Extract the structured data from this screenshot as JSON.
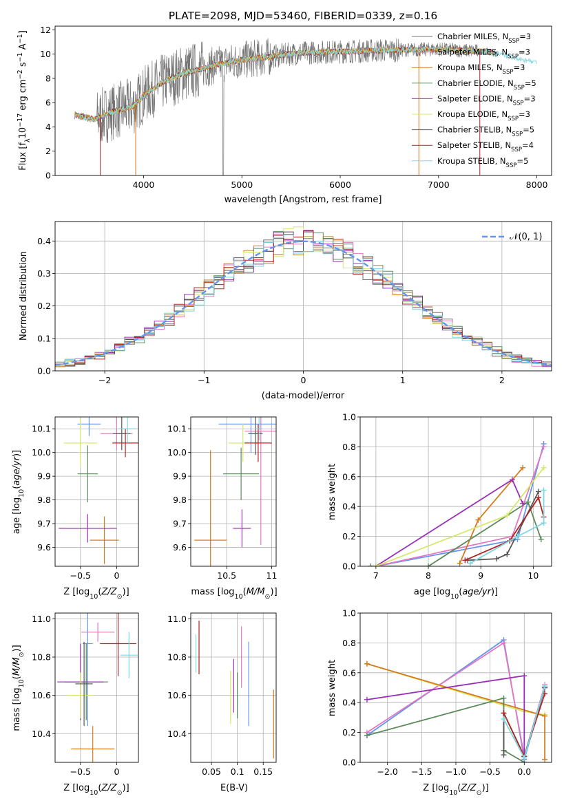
{
  "title": "PLATE=2098, MJD=53460, FIBERID=0339, z=0.16",
  "colors": {
    "c_miles": "#737373",
    "s_miles": "#e377c2",
    "k_miles": "#d47a1c",
    "c_elodie": "#5b8a5b",
    "s_elodie": "#9b30b8",
    "k_elodie": "#d6e86a",
    "c_stelib": "#555555",
    "s_stelib": "#b22222",
    "k_stelib": "#7fd7e0",
    "normal": "#6495ed"
  },
  "legend": [
    {
      "label": "Chabrier MILES, N",
      "sub": "SSP",
      "tail": "=3",
      "color": "#737373"
    },
    {
      "label": "Salpeter MILES, N",
      "sub": "SSP",
      "tail": "=3",
      "color": "#e377c2"
    },
    {
      "label": "Kroupa MILES, N",
      "sub": "SSP",
      "tail": "=3",
      "color": "#d47a1c"
    },
    {
      "label": "Chabrier ELODIE, N",
      "sub": "SSP",
      "tail": "=5",
      "color": "#5b8a5b"
    },
    {
      "label": "Salpeter ELODIE, N",
      "sub": "SSP",
      "tail": "=3",
      "color": "#9b30b8"
    },
    {
      "label": "Kroupa ELODIE, N",
      "sub": "SSP",
      "tail": "=3",
      "color": "#d6e86a"
    },
    {
      "label": "Chabrier STELIB, N",
      "sub": "SSP",
      "tail": "=5",
      "color": "#555555"
    },
    {
      "label": "Salpeter STELIB, N",
      "sub": "SSP",
      "tail": "=4",
      "color": "#b22222"
    },
    {
      "label": "Kroupa STELIB, N",
      "sub": "SSP",
      "tail": "=5",
      "color": "#7fd7e0"
    }
  ],
  "normal_label": "𝒩(0, 1)",
  "chart_data": [
    {
      "id": "spectrum",
      "type": "line",
      "xlabel": "wavelength [Angstrom, rest frame]",
      "ylabel": "Flux [f_λ 10^-17 erg cm^-2 s^-1 A^-1]",
      "xlim": [
        3100,
        8150
      ],
      "ylim": [
        0,
        12.3
      ],
      "xticks": [
        4000,
        5000,
        6000,
        7000,
        8000
      ],
      "yticks": [
        0,
        2,
        4,
        6,
        8,
        10,
        12
      ],
      "continuum": {
        "x": [
          3300,
          3500,
          3700,
          3900,
          4000,
          4200,
          4400,
          4600,
          4800,
          5000,
          5300,
          5600,
          6000,
          6400,
          7000,
          7500,
          8000
        ],
        "y": [
          5.0,
          4.6,
          5.3,
          5.7,
          6.6,
          7.7,
          8.4,
          8.8,
          9.2,
          9.5,
          9.8,
          10.1,
          10.2,
          10.3,
          10.4,
          10.2,
          9.3
        ]
      },
      "grid": false
    },
    {
      "id": "residuals",
      "type": "histogram",
      "xlabel": "(data-model)/error",
      "ylabel": "Normed distribution",
      "xlim": [
        -2.5,
        2.5
      ],
      "ylim": [
        0,
        0.46
      ],
      "xticks": [
        -2,
        -1,
        0,
        1,
        2
      ],
      "yticks": [
        0.0,
        0.1,
        0.2,
        0.3,
        0.4
      ],
      "grid": true,
      "legend_position": "top-right"
    },
    {
      "id": "age_vs_Z",
      "type": "errorbar",
      "xlabel": "Z [log10(Z/Z⊙)]",
      "ylabel": "age  [log10(age/yr)]",
      "xlim": [
        -0.85,
        0.3
      ],
      "ylim": [
        9.52,
        10.15
      ],
      "xticks": [
        -0.5,
        0.0
      ],
      "yticks": [
        9.6,
        9.7,
        9.8,
        9.9,
        10.0,
        10.1
      ],
      "points": [
        {
          "x": 0.0,
          "y": 10.08,
          "xerr": 0.22,
          "yerr": 0.07,
          "color": "#e377c2"
        },
        {
          "x": -0.38,
          "y": 10.12,
          "xerr": 0.16,
          "yerr": 0.05,
          "color": "#6495ed"
        },
        {
          "x": -0.17,
          "y": 9.63,
          "xerr": 0.2,
          "yerr": 0.1,
          "color": "#d47a1c"
        },
        {
          "x": -0.4,
          "y": 9.91,
          "xerr": 0.14,
          "yerr": 0.12,
          "color": "#5b8a5b"
        },
        {
          "x": -0.4,
          "y": 9.68,
          "xerr": 0.4,
          "yerr": 0.06,
          "color": "#9b30b8"
        },
        {
          "x": -0.5,
          "y": 10.04,
          "xerr": 0.23,
          "yerr": 0.1,
          "color": "#d6e86a"
        },
        {
          "x": 0.07,
          "y": 10.08,
          "xerr": 0.12,
          "yerr": 0.07,
          "color": "#555555"
        },
        {
          "x": 0.12,
          "y": 10.04,
          "xerr": 0.18,
          "yerr": 0.06,
          "color": "#b22222"
        },
        {
          "x": 0.15,
          "y": 10.1,
          "xerr": 0.12,
          "yerr": 0.06,
          "color": "#7fd7e0"
        }
      ]
    },
    {
      "id": "age_vs_mass",
      "type": "errorbar",
      "xlabel": "mass [log10(M/M⊙)]",
      "ylabel": "",
      "xlim": [
        10.1,
        11.05
      ],
      "ylim": [
        9.52,
        10.15
      ],
      "xticks": [
        10.5,
        11.0
      ],
      "yticks": [
        9.6,
        9.7,
        9.8,
        9.9,
        10.0,
        10.1
      ],
      "points": [
        {
          "x": 10.88,
          "y": 10.09,
          "xerr": 0.18,
          "yerr": 0.48,
          "color": "#e377c2"
        },
        {
          "x": 10.77,
          "y": 10.12,
          "xerr": 0.36,
          "yerr": 0.12,
          "color": "#6495ed"
        },
        {
          "x": 10.32,
          "y": 9.63,
          "xerr": 0.18,
          "yerr": 0.38,
          "color": "#d47a1c"
        },
        {
          "x": 10.66,
          "y": 9.91,
          "xerr": 0.2,
          "yerr": 0.11,
          "color": "#5b8a5b"
        },
        {
          "x": 10.67,
          "y": 9.68,
          "xerr": 0.1,
          "yerr": 0.08,
          "color": "#9b30b8"
        },
        {
          "x": 10.68,
          "y": 10.04,
          "xerr": 0.16,
          "yerr": 0.08,
          "color": "#d6e86a"
        },
        {
          "x": 10.82,
          "y": 10.08,
          "xerr": 0.08,
          "yerr": 0.09,
          "color": "#555555"
        },
        {
          "x": 10.85,
          "y": 10.04,
          "xerr": 0.15,
          "yerr": 0.08,
          "color": "#b22222"
        },
        {
          "x": 10.86,
          "y": 10.1,
          "xerr": 0.04,
          "yerr": 0.05,
          "color": "#7fd7e0"
        }
      ]
    },
    {
      "id": "weight_vs_age",
      "type": "line",
      "xlabel": "age  [log10(age/yr)]",
      "ylabel": "mass weight",
      "xlim": [
        6.7,
        10.35
      ],
      "ylim": [
        0,
        1.0
      ],
      "xticks": [
        7,
        8,
        9,
        10
      ],
      "yticks": [
        0.0,
        0.2,
        0.4,
        0.6,
        0.8,
        1.0
      ],
      "grid": true,
      "series": [
        {
          "color": "#6495ed",
          "x": [
            7.0,
            9.7,
            10.2
          ],
          "y": [
            0.0,
            0.18,
            0.82
          ]
        },
        {
          "color": "#e377c2",
          "x": [
            7.0,
            9.6,
            10.2
          ],
          "y": [
            0.0,
            0.2,
            0.8
          ]
        },
        {
          "color": "#d47a1c",
          "x": [
            8.6,
            8.95,
            9.8
          ],
          "y": [
            0.02,
            0.31,
            0.66
          ]
        },
        {
          "color": "#5b8a5b",
          "x": [
            6.9,
            8.0,
            9.9,
            10.15
          ],
          "y": [
            0.0,
            0.0,
            0.43,
            0.18
          ]
        },
        {
          "color": "#9b30b8",
          "x": [
            7.0,
            9.6,
            9.8
          ],
          "y": [
            0.0,
            0.58,
            0.42
          ]
        },
        {
          "color": "#d6e86a",
          "x": [
            7.0,
            9.5,
            10.2
          ],
          "y": [
            0.0,
            0.34,
            0.66
          ]
        },
        {
          "color": "#555555",
          "x": [
            8.75,
            9.3,
            9.5,
            10.1
          ],
          "y": [
            0.04,
            0.05,
            0.08,
            0.5
          ]
        },
        {
          "color": "#b22222",
          "x": [
            8.7,
            9.55,
            10.1,
            10.2
          ],
          "y": [
            0.04,
            0.17,
            0.46,
            0.33
          ]
        },
        {
          "color": "#7fd7e0",
          "x": [
            8.8,
            9.7,
            10.2,
            10.2
          ],
          "y": [
            0.02,
            0.2,
            0.29,
            0.51
          ]
        }
      ]
    },
    {
      "id": "mass_vs_Z",
      "type": "errorbar",
      "xlabel": "Z [log10(Z/Z⊙)]",
      "ylabel": "mass [log10(M/M⊙)]",
      "xlim": [
        -0.85,
        0.3
      ],
      "ylim": [
        10.25,
        11.03
      ],
      "xticks": [
        -0.5,
        0.0
      ],
      "yticks": [
        10.4,
        10.6,
        10.8,
        11.0
      ],
      "points": [
        {
          "x": -0.26,
          "y": 10.93,
          "xerr": 0.23,
          "yerr": 0.05,
          "color": "#e377c2"
        },
        {
          "x": -0.4,
          "y": 10.87,
          "xerr": 0.07,
          "yerr": 0.43,
          "color": "#6495ed"
        },
        {
          "x": -0.33,
          "y": 10.32,
          "xerr": 0.3,
          "yerr": 0.12,
          "color": "#d47a1c"
        },
        {
          "x": -0.42,
          "y": 10.67,
          "xerr": 0.3,
          "yerr": 0.2,
          "color": "#5b8a5b"
        },
        {
          "x": -0.5,
          "y": 10.67,
          "xerr": 0.32,
          "yerr": 0.2,
          "color": "#9b30b8"
        },
        {
          "x": -0.5,
          "y": 10.6,
          "xerr": 0.17,
          "yerr": 0.12,
          "color": "#d6e86a"
        },
        {
          "x": -0.45,
          "y": 10.66,
          "xerr": 0.12,
          "yerr": 0.22,
          "color": "#555555"
        },
        {
          "x": 0.02,
          "y": 10.87,
          "xerr": 0.25,
          "yerr": 0.17,
          "color": "#b22222"
        },
        {
          "x": 0.17,
          "y": 10.81,
          "xerr": 0.12,
          "yerr": 0.12,
          "color": "#7fd7e0"
        }
      ]
    },
    {
      "id": "mass_vs_ebv",
      "type": "errorbar",
      "xlabel": "E(B-V)",
      "ylabel": "",
      "xlim": [
        0.01,
        0.175
      ],
      "ylim": [
        10.25,
        11.03
      ],
      "xticks": [
        0.05,
        0.1,
        0.15
      ],
      "yticks": [
        10.4,
        10.6,
        10.8,
        11.0
      ],
      "points": [
        {
          "x": 0.02,
          "y": 10.82,
          "yerr": 0.1,
          "color": "#7fd7e0"
        },
        {
          "x": 0.026,
          "y": 10.85,
          "yerr": 0.14,
          "color": "#b22222"
        },
        {
          "x": 0.087,
          "y": 10.59,
          "yerr": 0.14,
          "color": "#d6e86a"
        },
        {
          "x": 0.093,
          "y": 10.65,
          "yerr": 0.14,
          "color": "#9b30b8"
        },
        {
          "x": 0.1,
          "y": 10.6,
          "yerr": 0.12,
          "color": "#5b8a5b"
        },
        {
          "x": 0.108,
          "y": 10.8,
          "yerr": 0.16,
          "color": "#e377c2"
        },
        {
          "x": 0.122,
          "y": 10.66,
          "yerr": 0.22,
          "color": "#6495ed"
        },
        {
          "x": 0.17,
          "y": 10.45,
          "yerr": 0.18,
          "color": "#d47a1c"
        }
      ]
    },
    {
      "id": "weight_vs_Z",
      "type": "line",
      "xlabel": "Z [log10(Z/Z⊙)]",
      "ylabel": "mass weight",
      "xlim": [
        -2.4,
        0.4
      ],
      "ylim": [
        0,
        1.0
      ],
      "xticks": [
        -2.0,
        -1.5,
        -1.0,
        -0.5,
        0.0
      ],
      "yticks": [
        0.0,
        0.2,
        0.4,
        0.6,
        0.8,
        1.0
      ],
      "grid": true,
      "series": [
        {
          "color": "#6495ed",
          "x": [
            -2.3,
            -0.3,
            0.0,
            0.3
          ],
          "y": [
            0.18,
            0.82,
            0.02,
            0.5
          ]
        },
        {
          "color": "#e377c2",
          "x": [
            -2.3,
            -0.3,
            0.0,
            0.3
          ],
          "y": [
            0.2,
            0.8,
            0.04,
            0.52
          ]
        },
        {
          "color": "#d6e86a",
          "x": [
            -2.3,
            0.0,
            0.3
          ],
          "y": [
            0.66,
            0.34,
            0.32
          ]
        },
        {
          "color": "#d47a1c",
          "x": [
            -2.3,
            0.3,
            0.3
          ],
          "y": [
            0.66,
            0.31,
            0.02
          ]
        },
        {
          "color": "#9b30b8",
          "x": [
            -2.3,
            0.0,
            0.0
          ],
          "y": [
            0.42,
            0.58,
            0.0
          ]
        },
        {
          "color": "#5b8a5b",
          "x": [
            -2.3,
            -0.3,
            -0.3,
            0.0
          ],
          "y": [
            0.18,
            0.43,
            0.08,
            0.0
          ]
        },
        {
          "color": "#555555",
          "x": [
            -0.3,
            -0.3,
            0.0,
            0.3
          ],
          "y": [
            0.05,
            0.33,
            0.04,
            0.5
          ]
        },
        {
          "color": "#b22222",
          "x": [
            -0.3,
            0.0,
            0.3
          ],
          "y": [
            0.33,
            0.04,
            0.46
          ]
        },
        {
          "color": "#7fd7e0",
          "x": [
            -0.3,
            0.0,
            0.3
          ],
          "y": [
            0.29,
            0.03,
            0.51
          ]
        }
      ]
    }
  ]
}
